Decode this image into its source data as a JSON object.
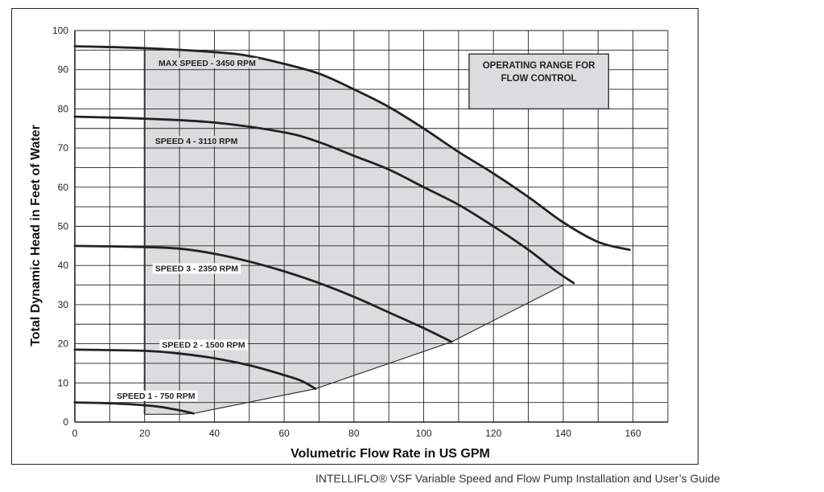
{
  "chart_data": {
    "type": "line",
    "title": "",
    "xlabel": "Volumetric Flow Rate in US GPM",
    "ylabel": "Total Dynamic Head in Feet of Water",
    "xlim": [
      0,
      170
    ],
    "ylim": [
      0,
      100
    ],
    "x_ticks": [
      0,
      20,
      40,
      60,
      80,
      100,
      120,
      140,
      160
    ],
    "y_ticks": [
      0,
      10,
      20,
      30,
      40,
      50,
      60,
      70,
      80,
      90,
      100
    ],
    "grid": true,
    "legend": "none",
    "series": [
      {
        "name": "MAX SPEED - 3450 RPM",
        "points": [
          [
            0,
            96
          ],
          [
            20,
            95.5
          ],
          [
            40,
            94.5
          ],
          [
            50,
            93.5
          ],
          [
            60,
            91.5
          ],
          [
            70,
            89
          ],
          [
            80,
            85
          ],
          [
            90,
            80.5
          ],
          [
            100,
            75
          ],
          [
            110,
            69
          ],
          [
            120,
            63.5
          ],
          [
            130,
            57.5
          ],
          [
            140,
            51
          ],
          [
            150,
            46
          ],
          [
            159,
            44
          ]
        ]
      },
      {
        "name": "SPEED 4 - 3110 RPM",
        "points": [
          [
            0,
            78
          ],
          [
            20,
            77.5
          ],
          [
            40,
            76.5
          ],
          [
            60,
            74
          ],
          [
            70,
            71.5
          ],
          [
            80,
            68
          ],
          [
            90,
            64.5
          ],
          [
            100,
            60
          ],
          [
            110,
            55.5
          ],
          [
            120,
            50
          ],
          [
            130,
            44
          ],
          [
            138,
            38.5
          ],
          [
            143,
            35.5
          ]
        ]
      },
      {
        "name": "SPEED 3 - 2350 RPM",
        "points": [
          [
            0,
            45
          ],
          [
            20,
            44.7
          ],
          [
            30,
            44.3
          ],
          [
            40,
            43
          ],
          [
            50,
            41
          ],
          [
            60,
            38.5
          ],
          [
            70,
            35.5
          ],
          [
            80,
            32
          ],
          [
            90,
            28
          ],
          [
            100,
            24
          ],
          [
            108,
            20.5
          ]
        ]
      },
      {
        "name": "SPEED 2 - 1500 RPM",
        "points": [
          [
            0,
            18.5
          ],
          [
            20,
            18.2
          ],
          [
            30,
            17.5
          ],
          [
            40,
            16.3
          ],
          [
            50,
            14.5
          ],
          [
            60,
            12
          ],
          [
            65,
            10.5
          ],
          [
            69,
            8.5
          ]
        ]
      },
      {
        "name": "SPEED 1 - 750 RPM",
        "points": [
          [
            0,
            5
          ],
          [
            10,
            4.8
          ],
          [
            20,
            4.3
          ],
          [
            25,
            3.8
          ],
          [
            30,
            3
          ],
          [
            34,
            2.2
          ]
        ]
      }
    ],
    "operating_range": {
      "label": "OPERATING RANGE FOR FLOW CONTROL",
      "label_lines": [
        "OPERATING RANGE FOR",
        "FLOW CONTROL"
      ],
      "lower_boundary": [
        [
          20,
          2
        ],
        [
          30,
          2
        ],
        [
          34,
          2.2
        ],
        [
          69,
          8.5
        ],
        [
          108,
          20.5
        ],
        [
          140,
          35
        ]
      ],
      "left_boundary_x": 20,
      "right_boundary_x": 140
    }
  },
  "footer": {
    "text": "INTELLIFLO® VSF Variable Speed and Flow Pump Installation and User’s Guide"
  },
  "colors": {
    "curve": "#222222",
    "region_fill": "#dcdcde",
    "grid": "#222222",
    "annotation_box": "#dcdcde"
  }
}
